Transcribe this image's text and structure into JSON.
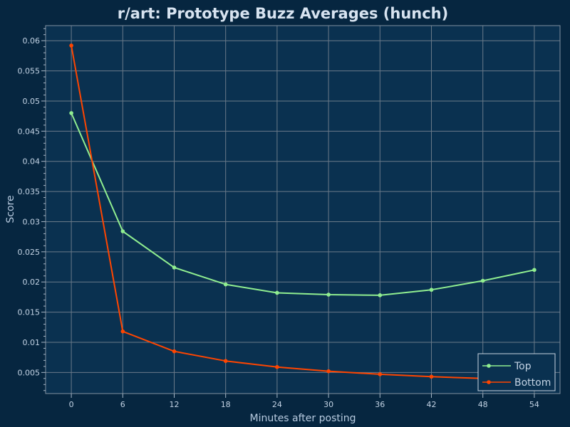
{
  "chart_data": {
    "type": "line",
    "title": "r/art: Prototype Buzz Averages (hunch)",
    "xlabel": "Minutes after posting",
    "ylabel": "Score",
    "x": [
      0,
      6,
      12,
      18,
      24,
      30,
      36,
      42,
      48,
      54
    ],
    "x_ticks": [
      "0",
      "6",
      "12",
      "18",
      "24",
      "30",
      "36",
      "42",
      "48",
      "54"
    ],
    "y_ticks": [
      "0.005",
      "0.01",
      "0.015",
      "0.02",
      "0.025",
      "0.03",
      "0.035",
      "0.04",
      "0.045",
      "0.05",
      "0.055",
      "0.06"
    ],
    "xlim": [
      -3,
      57
    ],
    "ylim": [
      0.0015,
      0.0625
    ],
    "grid": true,
    "legend_position": "bottom-right",
    "series": [
      {
        "name": "Top",
        "color": "#90ee90",
        "values": [
          0.048,
          0.0284,
          0.0224,
          0.0196,
          0.0182,
          0.0179,
          0.0178,
          0.0187,
          0.0202,
          0.022
        ]
      },
      {
        "name": "Bottom",
        "color": "#ff4500",
        "values": [
          0.0592,
          0.0118,
          0.0085,
          0.0069,
          0.0059,
          0.0052,
          0.0047,
          0.0043,
          0.004,
          0.0037
        ]
      }
    ]
  },
  "colors": {
    "background": "#062640",
    "plot_background": "#0a3150",
    "grid": "#6a7a89",
    "text": "#c3d3e4"
  }
}
